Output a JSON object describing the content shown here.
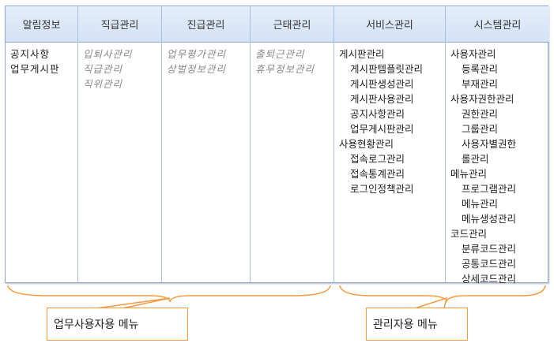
{
  "columns": [
    {
      "header": "알림정보",
      "style": "blk",
      "items": [
        {
          "label": "공지사항",
          "level": 0
        },
        {
          "label": "업무게시판",
          "level": 0
        }
      ]
    },
    {
      "header": "직급관리",
      "style": "gray",
      "items": [
        {
          "label": "입퇴사관리",
          "level": 0
        },
        {
          "label": "직급관리",
          "level": 0
        },
        {
          "label": "직위관리",
          "level": 0
        }
      ]
    },
    {
      "header": "진급관리",
      "style": "gray",
      "items": [
        {
          "label": "업무평가관리",
          "level": 0
        },
        {
          "label": "상벌정보관리",
          "level": 0
        }
      ]
    },
    {
      "header": "근태관리",
      "style": "gray",
      "items": [
        {
          "label": "출퇴근관리",
          "level": 0
        },
        {
          "label": "휴무정보관리",
          "level": 0
        }
      ]
    },
    {
      "header": "서비스관리",
      "style": "norm",
      "items": [
        {
          "label": "게시판관리",
          "level": 0
        },
        {
          "label": "게시판템플릿관리",
          "level": 1
        },
        {
          "label": "게시판생성관리",
          "level": 1
        },
        {
          "label": "게시판사용관리",
          "level": 1
        },
        {
          "label": "공지사항관리",
          "level": 1
        },
        {
          "label": "업무게시판관리",
          "level": 1
        },
        {
          "label": "사용현황관리",
          "level": 0
        },
        {
          "label": "접속로그관리",
          "level": 1
        },
        {
          "label": "접속통계관리",
          "level": 1
        },
        {
          "label": "로그인정책관리",
          "level": 1
        }
      ]
    },
    {
      "header": "시스템관리",
      "style": "norm",
      "items": [
        {
          "label": "사용자관리",
          "level": 0
        },
        {
          "label": "등록관리",
          "level": 1
        },
        {
          "label": "부재관리",
          "level": 1
        },
        {
          "label": "사용자권한관리",
          "level": 0
        },
        {
          "label": "권한관리",
          "level": 1
        },
        {
          "label": "그룹관리",
          "level": 1
        },
        {
          "label": "사용자별권한",
          "level": 1
        },
        {
          "label": "롤관리",
          "level": 1
        },
        {
          "label": "메뉴관리",
          "level": 0
        },
        {
          "label": "프로그램관리",
          "level": 1
        },
        {
          "label": "메뉴관리",
          "level": 1
        },
        {
          "label": "메뉴생성관리",
          "level": 1
        },
        {
          "label": "코드관리",
          "level": 0
        },
        {
          "label": "분류코드관리",
          "level": 1
        },
        {
          "label": "공통코드관리",
          "level": 1
        },
        {
          "label": "상세코드관리",
          "level": 1
        }
      ]
    }
  ],
  "callouts": {
    "business": "업무사용자용 메뉴",
    "admin": "관리자용 메뉴"
  },
  "colors": {
    "header_bg": "#d3e2f5",
    "border": "#8eaad2",
    "callout": "#f59a40",
    "muted_text": "#888888"
  }
}
